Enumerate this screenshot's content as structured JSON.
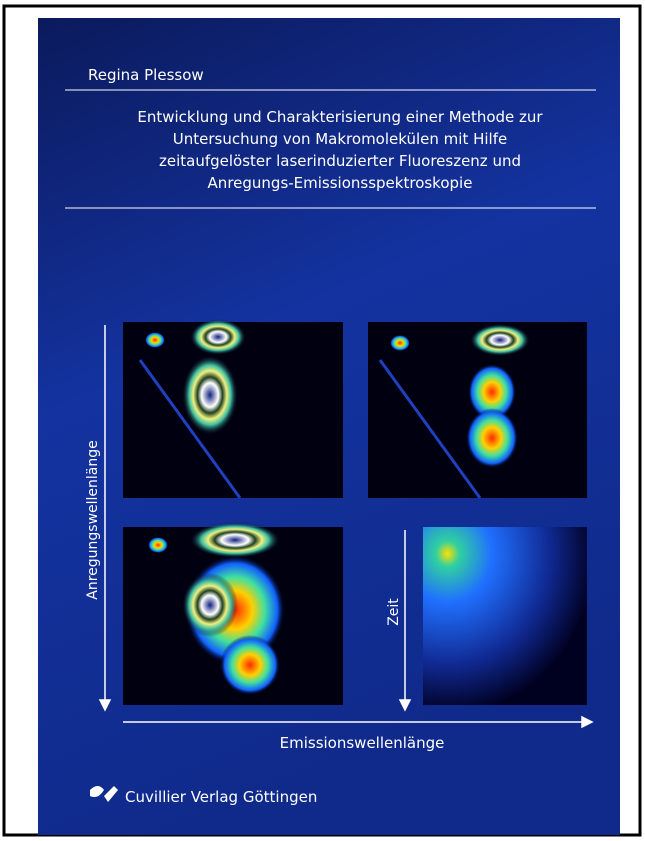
{
  "cover": {
    "author": "Regina Plessow",
    "title_lines": [
      "Entwicklung und Charakterisierung einer Methode zur",
      "Untersuchung von Makromolekülen mit Hilfe",
      "zeitaufgelöster laserinduzierter Fluoreszenz und",
      "Anregungs-Emissionsspektroskopie"
    ],
    "y_axis_label": "Anregungswellenlänge",
    "x_axis_label": "Emissionswellenlänge",
    "time_label": "Zeit",
    "publisher": "Cuvillier Verlag Göttingen"
  }
}
